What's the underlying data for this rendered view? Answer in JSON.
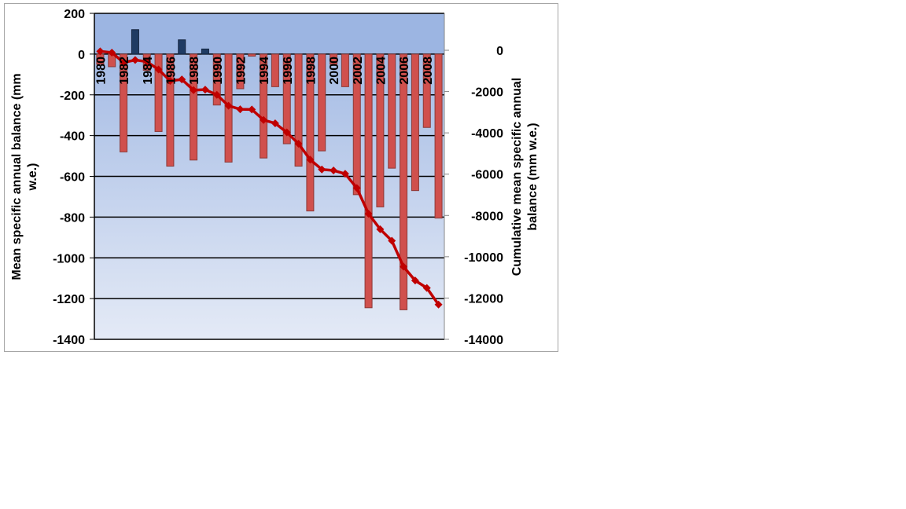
{
  "chart_data": {
    "type": "bar+line",
    "title": "",
    "xlabel": "",
    "ylabel": "Mean specific annual balance (mm w.e.)",
    "y2label": "Cumulative mean specific annual balance (mm w.e.)",
    "ylim": [
      -1400,
      200
    ],
    "y2lim": [
      -14000,
      0
    ],
    "yticks": [
      200,
      0,
      -200,
      -400,
      -600,
      -800,
      -1000,
      -1200,
      -1400
    ],
    "y2ticks": [
      0,
      -2000,
      -4000,
      -6000,
      -8000,
      -10000,
      -12000,
      -14000
    ],
    "categories": [
      1980,
      1981,
      1982,
      1983,
      1984,
      1985,
      1986,
      1987,
      1988,
      1989,
      1990,
      1991,
      1992,
      1993,
      1994,
      1995,
      1996,
      1997,
      1998,
      1999,
      2000,
      2001,
      2002,
      2003,
      2004,
      2005,
      2006,
      2007,
      2008,
      2009
    ],
    "xtick_labels": [
      "1980",
      "1982",
      "1984",
      "1986",
      "1988",
      "1990",
      "1992",
      "1994",
      "1996",
      "1998",
      "2000",
      "2002",
      "2004",
      "2006",
      "2008"
    ],
    "series": [
      {
        "name": "Mean specific annual balance",
        "type": "bar",
        "axis": "left",
        "values": [
          -50,
          -62,
          -480,
          120,
          -80,
          -380,
          -550,
          70,
          -520,
          25,
          -250,
          -530,
          -170,
          -10,
          -510,
          -160,
          -440,
          -550,
          -770,
          -475,
          -50,
          -160,
          -690,
          -1245,
          -750,
          -560,
          -1255,
          -670,
          -360,
          -805
        ]
      },
      {
        "name": "Cumulative mean specific annual balance",
        "type": "line",
        "axis": "right",
        "values": [
          -50,
          -112,
          -592,
          -472,
          -552,
          -932,
          -1482,
          -1412,
          -1932,
          -1907,
          -2157,
          -2687,
          -2857,
          -2867,
          -3377,
          -3537,
          -3977,
          -4527,
          -5297,
          -5772,
          -5822,
          -5982,
          -6672,
          -7917,
          -8667,
          -9227,
          -10482,
          -11152,
          -11512,
          -12317
        ]
      }
    ],
    "colors": {
      "negative_bar": "#d0504d",
      "positive_bar": "#1f3b63",
      "line": "#c00000",
      "plot_top": "#9cb5e2",
      "plot_bottom": "#e4eaf6"
    },
    "grid": true,
    "legend": "none"
  }
}
